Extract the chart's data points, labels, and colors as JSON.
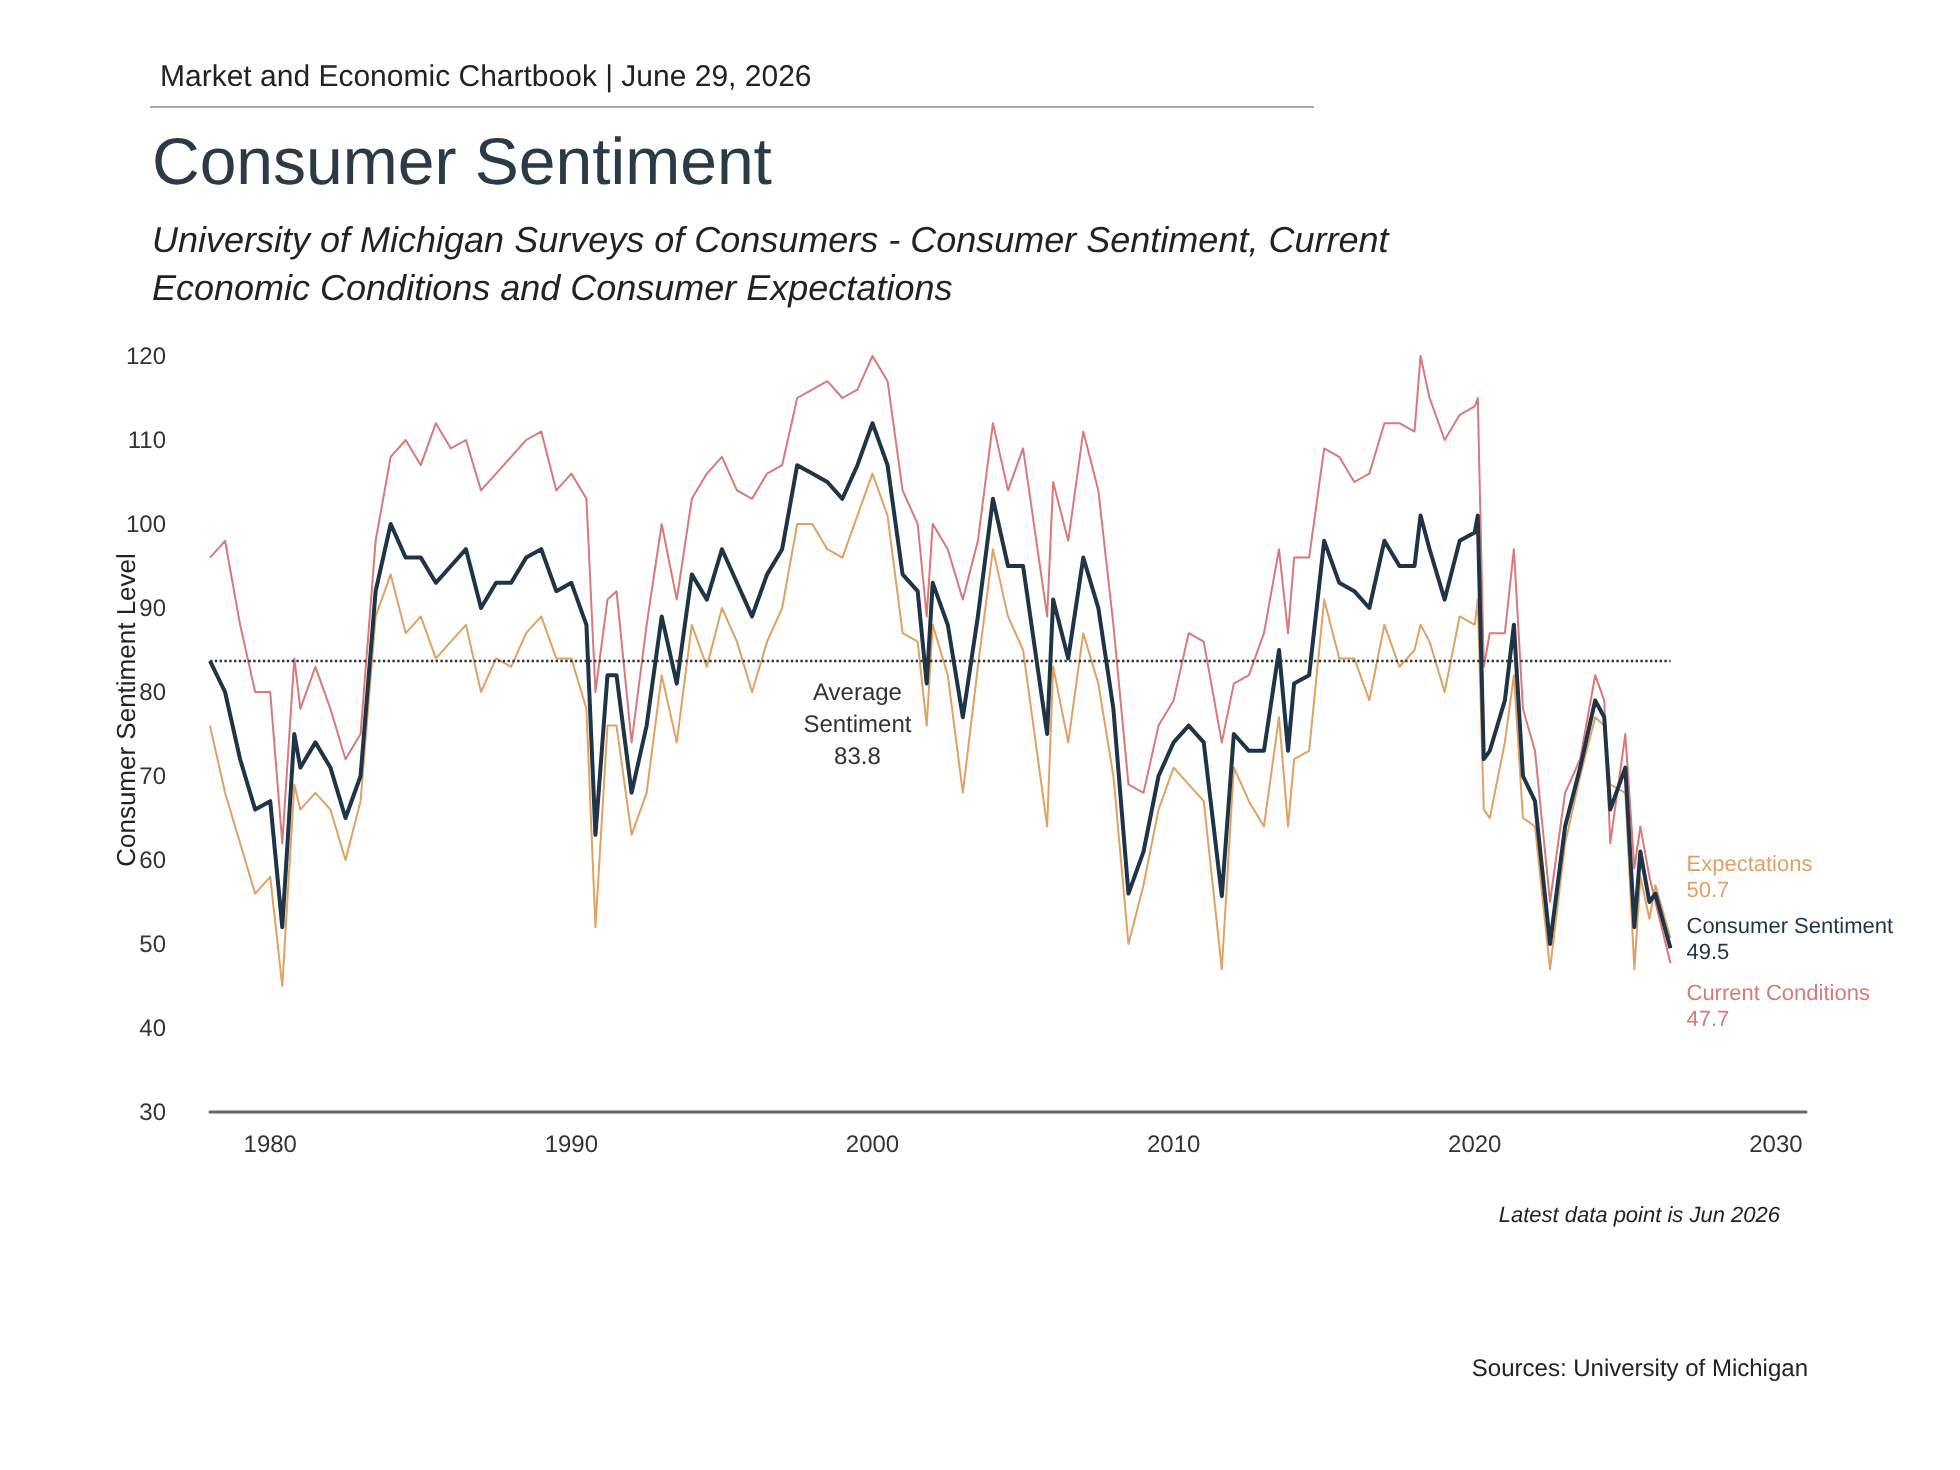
{
  "chart_data": {
    "type": "line",
    "title": "Consumer Sentiment",
    "subtitle": "University of Michigan Surveys of Consumers - Consumer Sentiment, Current Economic Conditions and Consumer Expectations",
    "ylabel": "Consumer Sentiment Level",
    "annotations": [
      "Market and Economic Chartbook | June 29, 2026",
      "Latest data point is Jun 2026",
      "Sources: University of Michigan"
    ],
    "x": [
      1978.0,
      1978.5,
      1979.0,
      1979.5,
      1980.0,
      1980.4,
      1980.8,
      1981.0,
      1981.5,
      1982.0,
      1982.5,
      1983.0,
      1983.5,
      1984.0,
      1984.5,
      1985.0,
      1985.5,
      1986.0,
      1986.5,
      1987.0,
      1987.5,
      1988.0,
      1988.5,
      1989.0,
      1989.5,
      1990.0,
      1990.5,
      1990.8,
      1991.2,
      1991.5,
      1992.0,
      1992.5,
      1993.0,
      1993.5,
      1994.0,
      1994.5,
      1995.0,
      1995.5,
      1996.0,
      1996.5,
      1997.0,
      1997.5,
      1998.0,
      1998.5,
      1999.0,
      1999.5,
      2000.0,
      2000.5,
      2001.0,
      2001.5,
      2001.8,
      2002.0,
      2002.5,
      2003.0,
      2003.5,
      2004.0,
      2004.5,
      2005.0,
      2005.8,
      2006.0,
      2006.5,
      2007.0,
      2007.5,
      2008.0,
      2008.5,
      2009.0,
      2009.5,
      2010.0,
      2010.5,
      2011.0,
      2011.6,
      2012.0,
      2012.5,
      2013.0,
      2013.5,
      2013.8,
      2014.0,
      2014.5,
      2015.0,
      2015.5,
      2016.0,
      2016.5,
      2017.0,
      2017.5,
      2018.0,
      2018.2,
      2018.5,
      2019.0,
      2019.5,
      2020.0,
      2020.1,
      2020.3,
      2020.5,
      2021.0,
      2021.3,
      2021.6,
      2022.0,
      2022.5,
      2023.0,
      2023.5,
      2024.0,
      2024.3,
      2024.5,
      2025.0,
      2025.3,
      2025.5,
      2025.8,
      2026.0,
      2026.5
    ],
    "series": [
      {
        "name": "Current Conditions",
        "color": "#d9797a",
        "values": [
          96,
          98,
          88,
          80,
          80,
          62,
          84,
          78,
          83,
          78,
          72,
          75,
          98,
          108,
          110,
          107,
          112,
          109,
          110,
          104,
          106,
          108,
          110,
          111,
          104,
          106,
          103,
          80,
          91,
          92,
          74,
          88,
          100,
          91,
          103,
          106,
          108,
          104,
          103,
          106,
          107,
          115,
          116,
          117,
          115,
          116,
          120,
          117,
          104,
          100,
          89,
          100,
          97,
          91,
          98,
          112,
          104,
          109,
          89,
          105,
          98,
          111,
          104,
          88,
          69,
          68,
          76,
          79,
          87,
          86,
          74,
          81,
          82,
          87,
          97,
          87,
          96,
          96,
          109,
          108,
          105,
          106,
          112,
          112,
          111,
          120,
          115,
          110,
          113,
          114,
          115,
          83,
          87,
          87,
          97,
          78,
          73,
          55,
          68,
          72,
          82,
          79,
          62,
          75,
          59,
          64,
          58,
          55,
          47.7
        ],
        "value_labels": [
          null,
          null,
          null,
          null,
          null,
          null,
          null,
          null,
          null,
          null,
          null,
          null,
          null,
          null,
          null,
          null,
          null,
          null,
          null,
          null,
          null,
          null,
          null,
          null,
          null,
          null,
          null,
          null,
          null,
          null,
          null,
          null,
          null,
          null,
          null,
          null,
          null,
          null,
          null,
          null,
          null,
          null,
          null,
          null,
          null,
          null,
          null,
          null,
          null,
          null,
          null,
          null,
          null,
          null,
          null,
          null,
          null,
          null,
          null,
          null,
          null,
          null,
          null,
          null,
          null,
          null,
          null,
          null,
          null,
          null,
          null,
          null,
          null,
          null,
          null,
          null,
          null,
          null,
          null,
          null,
          null,
          null,
          null,
          null,
          null,
          null,
          null,
          null,
          null,
          null,
          null,
          null,
          null,
          null,
          null,
          null,
          null,
          null,
          null,
          null,
          null,
          null,
          null,
          null,
          null,
          null,
          null,
          null,
          "47.7"
        ]
      },
      {
        "name": "Expectations",
        "color": "#e0a262",
        "values": [
          76,
          68,
          62,
          56,
          58,
          45,
          69,
          66,
          68,
          66,
          60,
          67,
          89,
          94,
          87,
          89,
          84,
          86,
          88,
          80,
          84,
          83,
          87,
          89,
          84,
          84,
          78,
          52,
          76,
          76,
          63,
          68,
          82,
          74,
          88,
          83,
          90,
          86,
          80,
          86,
          90,
          100,
          100,
          97,
          96,
          101,
          106,
          101,
          87,
          86,
          76,
          88,
          82,
          68,
          83,
          97,
          89,
          85,
          64,
          83,
          74,
          87,
          81,
          70,
          50,
          57,
          66,
          71,
          69,
          67,
          47,
          71,
          67,
          64,
          77,
          64,
          72,
          73,
          91,
          84,
          84,
          79,
          88,
          83,
          85,
          88,
          86,
          80,
          89,
          88,
          91,
          66,
          65,
          74,
          82,
          65,
          64,
          47,
          62,
          70,
          77,
          76,
          69,
          68,
          47,
          58,
          53,
          57,
          50.7
        ],
        "value_labels": [
          null,
          null,
          null,
          null,
          null,
          null,
          null,
          null,
          null,
          null,
          null,
          null,
          null,
          null,
          null,
          null,
          null,
          null,
          null,
          null,
          null,
          null,
          null,
          null,
          null,
          null,
          null,
          null,
          null,
          null,
          null,
          null,
          null,
          null,
          null,
          null,
          null,
          null,
          null,
          null,
          null,
          null,
          null,
          null,
          null,
          null,
          null,
          null,
          null,
          null,
          null,
          null,
          null,
          null,
          null,
          null,
          null,
          null,
          null,
          null,
          null,
          null,
          null,
          null,
          null,
          null,
          null,
          null,
          null,
          null,
          null,
          null,
          null,
          null,
          null,
          null,
          null,
          null,
          null,
          null,
          null,
          null,
          null,
          null,
          null,
          null,
          null,
          null,
          null,
          null,
          null,
          null,
          null,
          null,
          null,
          null,
          null,
          null,
          null,
          null,
          null,
          null,
          null,
          null,
          null,
          null,
          null,
          null,
          "50.7"
        ]
      },
      {
        "name": "Consumer Sentiment",
        "color": "#1f3447",
        "values": [
          83.7,
          80,
          72,
          66,
          67,
          52,
          75,
          71,
          74,
          71,
          65,
          70,
          92,
          100,
          96,
          96,
          93,
          95,
          97,
          90,
          93,
          93,
          96,
          97,
          92,
          93,
          88,
          63,
          82,
          82,
          68,
          76,
          89,
          81,
          94,
          91,
          97,
          93,
          89,
          94,
          97,
          107,
          106,
          105,
          103,
          107,
          112,
          107,
          94,
          92,
          81,
          93,
          88,
          77,
          89,
          103,
          95,
          95,
          75,
          91,
          84,
          96,
          90,
          78,
          56,
          61,
          70,
          74,
          76,
          74,
          55.7,
          75,
          73,
          73,
          85,
          73,
          81,
          82,
          98,
          93,
          92,
          90,
          98,
          95,
          95,
          101,
          97,
          91,
          98,
          99,
          101,
          72,
          73,
          79,
          88,
          70,
          67,
          50,
          64,
          71,
          79,
          77,
          66,
          71,
          52,
          61,
          55,
          56,
          49.5
        ],
        "value_labels": [
          null,
          null,
          null,
          null,
          null,
          null,
          null,
          null,
          null,
          null,
          null,
          null,
          null,
          null,
          null,
          null,
          null,
          null,
          null,
          null,
          null,
          null,
          null,
          null,
          null,
          null,
          null,
          null,
          null,
          null,
          null,
          null,
          null,
          null,
          null,
          null,
          null,
          null,
          null,
          null,
          null,
          null,
          null,
          null,
          null,
          null,
          null,
          null,
          null,
          null,
          null,
          null,
          null,
          null,
          null,
          null,
          null,
          null,
          null,
          null,
          null,
          null,
          null,
          null,
          null,
          null,
          null,
          null,
          null,
          null,
          null,
          null,
          null,
          null,
          null,
          null,
          null,
          null,
          null,
          null,
          null,
          null,
          null,
          null,
          null,
          null,
          null,
          null,
          null,
          null,
          null,
          null,
          null,
          null,
          null,
          null,
          null,
          null,
          null,
          null,
          null,
          null,
          null,
          null,
          null,
          null,
          null,
          null,
          "49.5"
        ]
      }
    ],
    "xlim": [
      1978,
      2031
    ],
    "xticks": [
      1980,
      1990,
      2000,
      2010,
      2020,
      2030
    ],
    "ylim": [
      30,
      120
    ],
    "yticks": [
      30,
      40,
      50,
      60,
      70,
      80,
      90,
      100,
      110,
      120
    ],
    "ref_lines": [
      {
        "axis": "y",
        "value": 83.8,
        "label": "Average Sentiment 83.8",
        "color": "#333333",
        "line_style": "dotted"
      }
    ],
    "grid": false,
    "legend": false,
    "marker": "none",
    "line_style": "solid"
  }
}
